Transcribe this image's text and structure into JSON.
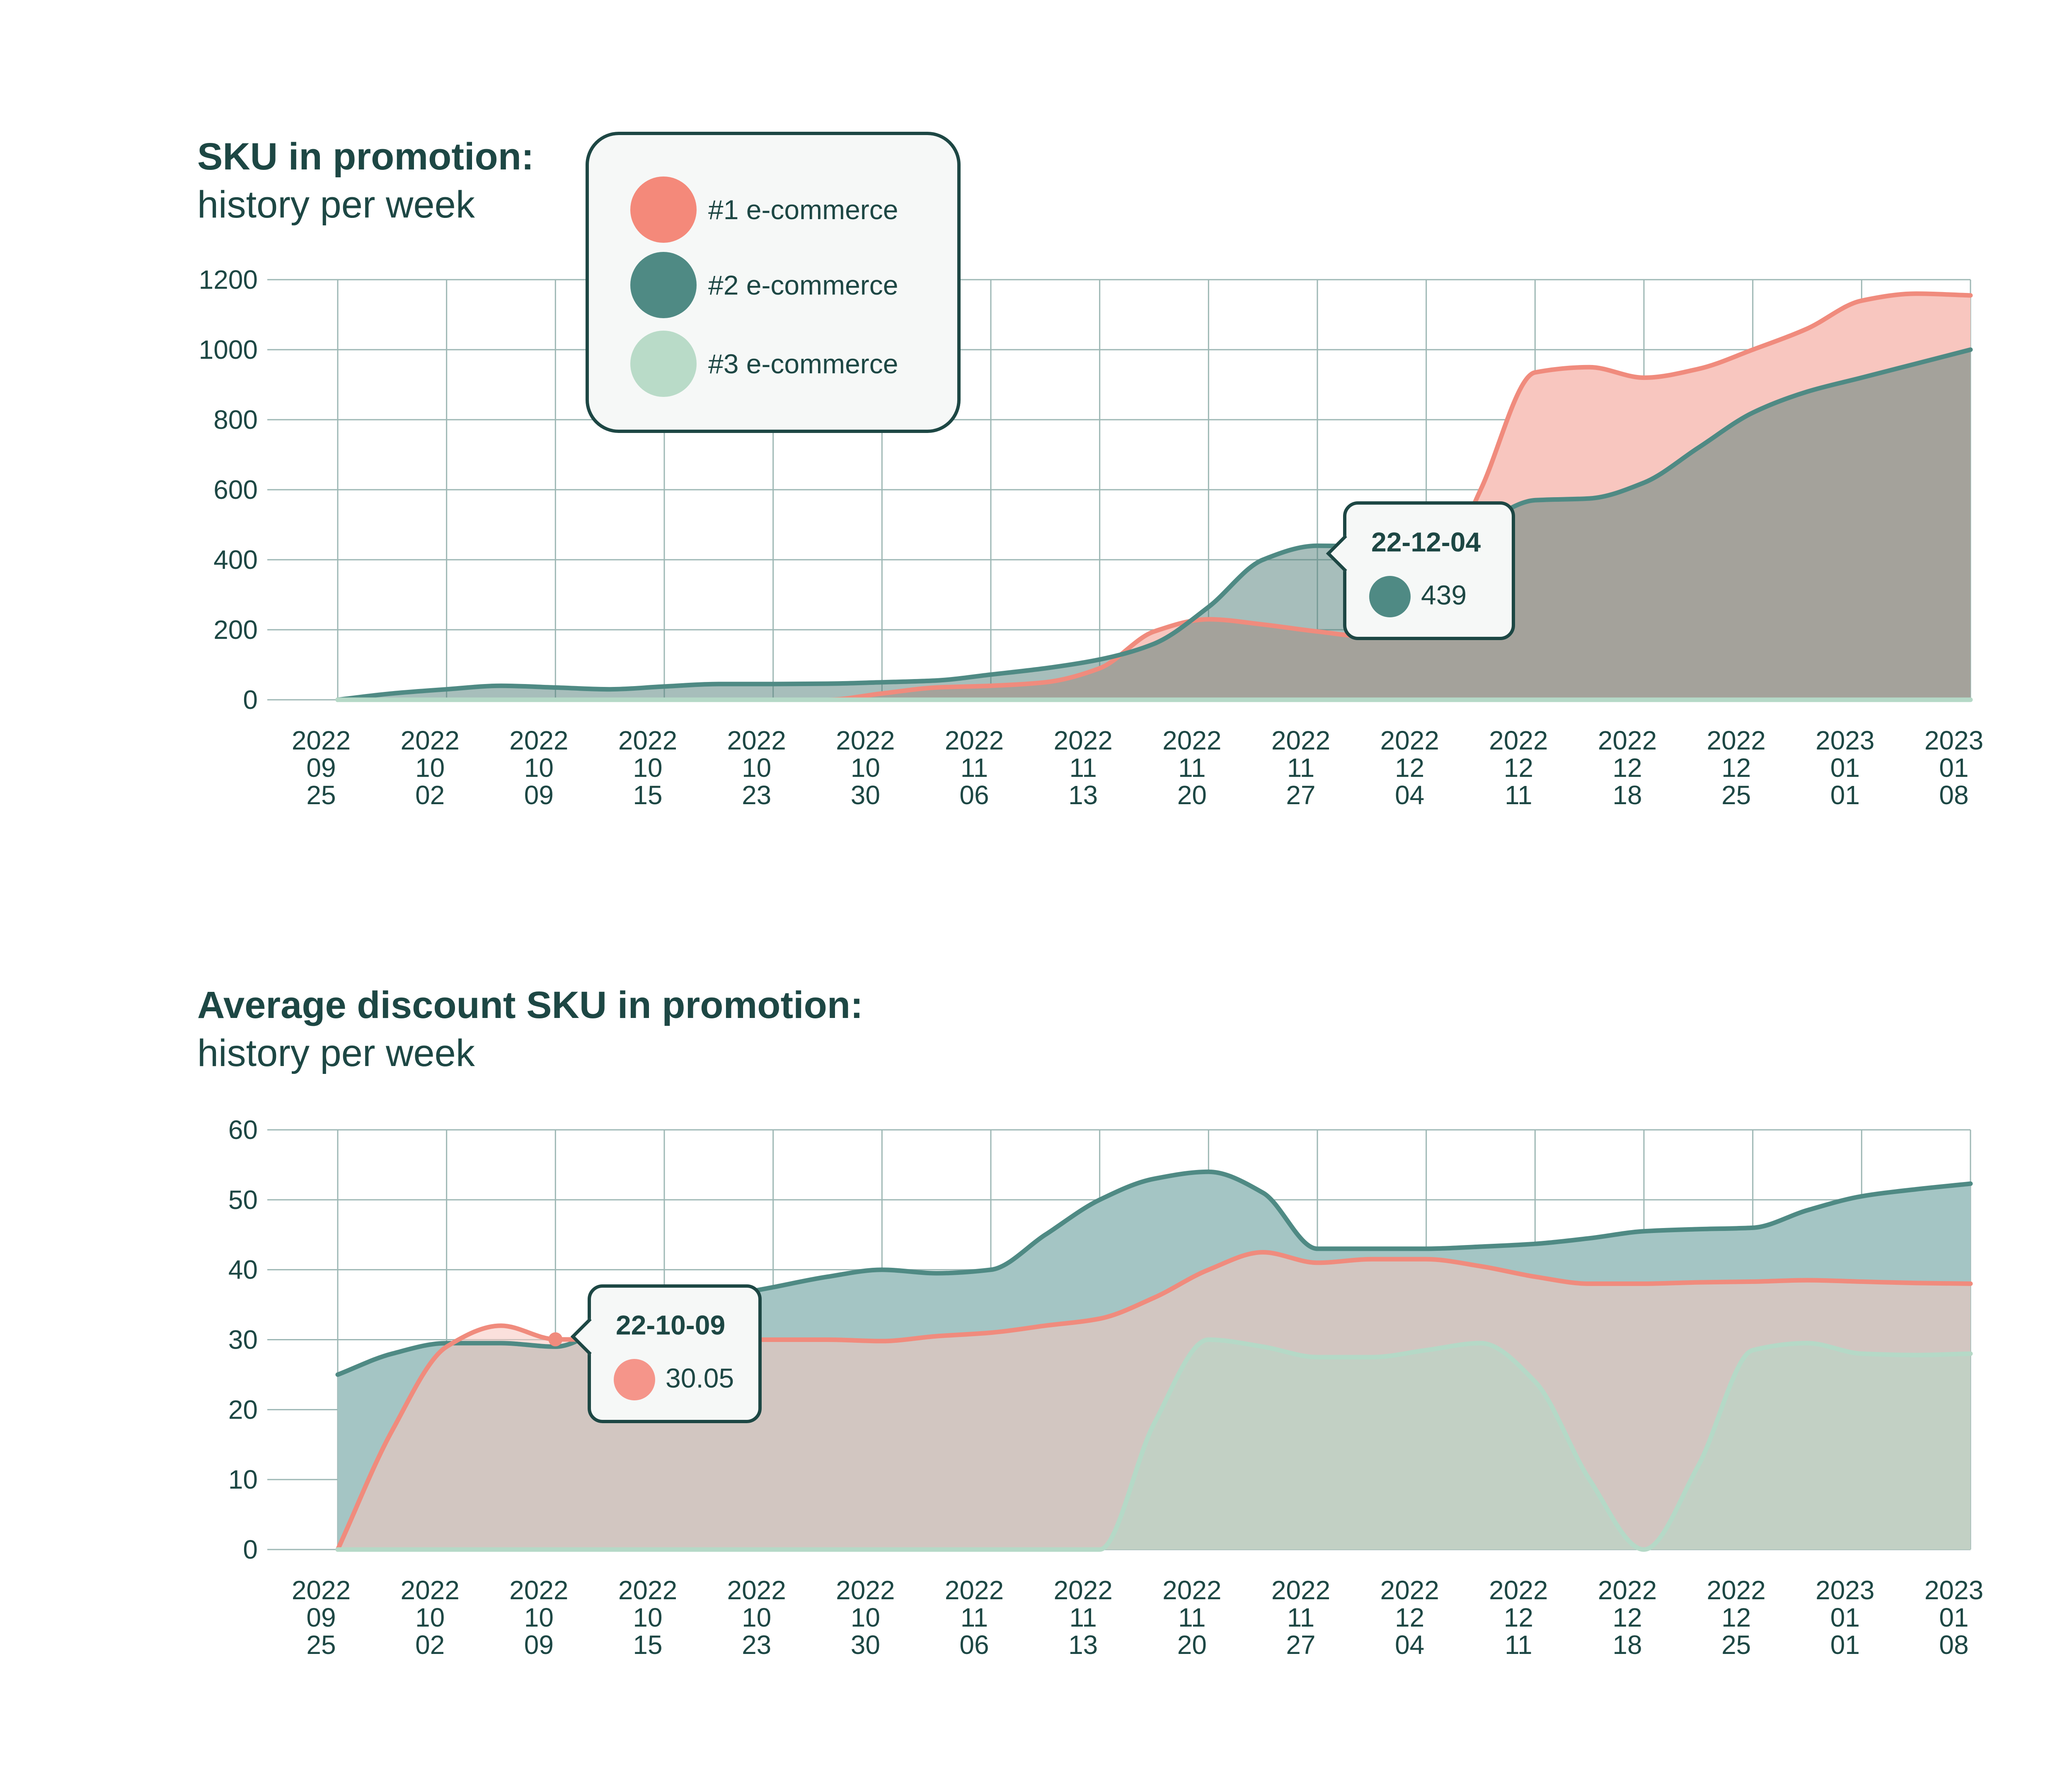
{
  "colors": {
    "series1": "#f08b7d",
    "series1_fill": "#f8c6bf",
    "series2": "#4f8a84",
    "series2_fill": "#a4c5c4",
    "series3": "#b5d9c7",
    "overlap_fill": "#a2a49f",
    "grid": "#9db7b4",
    "text": "#1d4744"
  },
  "legend": {
    "items": [
      {
        "label": "#1 e-commerce",
        "color": "#f4897a"
      },
      {
        "label": "#2 e-commerce",
        "color": "#4f8a84"
      },
      {
        "label": "#3 e-commerce",
        "color": "#b9dbc8"
      }
    ]
  },
  "x_ticks": [
    {
      "year": "2022",
      "month": "09",
      "day": "25"
    },
    {
      "year": "2022",
      "month": "10",
      "day": "02"
    },
    {
      "year": "2022",
      "month": "10",
      "day": "09"
    },
    {
      "year": "2022",
      "month": "10",
      "day": "15"
    },
    {
      "year": "2022",
      "month": "10",
      "day": "23"
    },
    {
      "year": "2022",
      "month": "10",
      "day": "30"
    },
    {
      "year": "2022",
      "month": "11",
      "day": "06"
    },
    {
      "year": "2022",
      "month": "11",
      "day": "13"
    },
    {
      "year": "2022",
      "month": "11",
      "day": "20"
    },
    {
      "year": "2022",
      "month": "11",
      "day": "27"
    },
    {
      "year": "2022",
      "month": "12",
      "day": "04"
    },
    {
      "year": "2022",
      "month": "12",
      "day": "11"
    },
    {
      "year": "2022",
      "month": "12",
      "day": "18"
    },
    {
      "year": "2022",
      "month": "12",
      "day": "25"
    },
    {
      "year": "2023",
      "month": "01",
      "day": "01"
    },
    {
      "year": "2023",
      "month": "01",
      "day": "08"
    }
  ],
  "chart1": {
    "title": "SKU in promotion:",
    "subtitle": "history per week",
    "tooltip": {
      "date": "22-12-04",
      "value": "439"
    }
  },
  "chart2": {
    "title": "Average discount SKU in promotion:",
    "subtitle": "history per week",
    "tooltip": {
      "date": "22-10-09",
      "value": "30.05"
    }
  },
  "chart_data": [
    {
      "type": "area",
      "title": "SKU in promotion: history per week",
      "xlabel": "",
      "ylabel": "",
      "ylim": [
        0,
        1200
      ],
      "yticks": [
        0,
        200,
        400,
        600,
        800,
        1000,
        1200
      ],
      "categories": [
        "2022-09-25",
        "2022-10-02",
        "2022-10-09",
        "2022-10-15",
        "2022-10-23",
        "2022-10-30",
        "2022-11-06",
        "2022-11-13",
        "2022-11-20",
        "2022-11-27",
        "2022-12-04",
        "2022-12-11",
        "2022-12-18",
        "2022-12-25",
        "2023-01-01",
        "2023-01-08"
      ],
      "legend": "top-left",
      "series": [
        {
          "name": "#1 e-commerce",
          "x": [
            0,
            1,
            2,
            3,
            4,
            4.5,
            5,
            5.5,
            6,
            6.5,
            7,
            7.5,
            8,
            8.5,
            9,
            9.5,
            10,
            10.5,
            11,
            11.5,
            12,
            12.5,
            13,
            13.5,
            14,
            14.5,
            15
          ],
          "values": [
            0,
            0,
            0,
            0,
            0,
            0,
            18,
            35,
            40,
            50,
            90,
            195,
            230,
            215,
            195,
            180,
            280,
            600,
            935,
            950,
            920,
            945,
            1000,
            1060,
            1140,
            1160,
            1155
          ]
        },
        {
          "name": "#2 e-commerce",
          "x": [
            0,
            0.5,
            1,
            1.5,
            2,
            2.5,
            3,
            3.5,
            4,
            4.5,
            5,
            5.5,
            6,
            6.5,
            7,
            7.5,
            8,
            8.5,
            9,
            9.25,
            9.5,
            10,
            10.5,
            11,
            11.5,
            12,
            12.5,
            13,
            13.5,
            14,
            14.5,
            15
          ],
          "values": [
            0,
            18,
            30,
            40,
            35,
            30,
            38,
            45,
            45,
            46,
            50,
            55,
            72,
            90,
            115,
            160,
            265,
            400,
            440,
            439,
            420,
            420,
            500,
            570,
            575,
            620,
            720,
            820,
            880,
            920,
            960,
            1000
          ]
        },
        {
          "name": "#3 e-commerce",
          "x": [
            0,
            15
          ],
          "values": [
            0,
            0
          ]
        }
      ],
      "tooltip": {
        "x": 9.25,
        "date": "22-12-04",
        "series": "#2 e-commerce",
        "value": 439
      }
    },
    {
      "type": "area",
      "title": "Average discount SKU in promotion: history per week",
      "xlabel": "",
      "ylabel": "",
      "ylim": [
        0,
        60
      ],
      "yticks": [
        0,
        10,
        20,
        30,
        40,
        50,
        60
      ],
      "categories": [
        "2022-09-25",
        "2022-10-02",
        "2022-10-09",
        "2022-10-15",
        "2022-10-23",
        "2022-10-30",
        "2022-11-06",
        "2022-11-13",
        "2022-11-20",
        "2022-11-27",
        "2022-12-04",
        "2022-12-11",
        "2022-12-18",
        "2022-12-25",
        "2023-01-01",
        "2023-01-08"
      ],
      "legend": "none",
      "series": [
        {
          "name": "#1 e-commerce",
          "x": [
            0,
            0.5,
            1,
            1.5,
            2,
            2.5,
            3,
            3.5,
            4,
            4.5,
            5,
            5.5,
            6,
            6.5,
            7,
            7.5,
            8,
            8.5,
            9,
            9.5,
            10,
            10.5,
            11,
            11.5,
            12,
            12.5,
            13,
            13.5,
            14,
            14.5,
            15
          ],
          "values": [
            0,
            17,
            29,
            32,
            30.05,
            30,
            30,
            30,
            30,
            30,
            29.8,
            30.5,
            31,
            32,
            33,
            36,
            40,
            42.5,
            41,
            41.5,
            41.5,
            40.5,
            39,
            38,
            38,
            38.2,
            38.3,
            38.5,
            38.3,
            38.1,
            38
          ]
        },
        {
          "name": "#2 e-commerce",
          "x": [
            0,
            0.5,
            1,
            1.5,
            2,
            2.5,
            3,
            3.5,
            4,
            4.5,
            5,
            5.5,
            6,
            6.5,
            7,
            7.5,
            8,
            8.5,
            9,
            9.5,
            10,
            10.5,
            11,
            11.5,
            12,
            12.5,
            13,
            13.5,
            14,
            14.5,
            15
          ],
          "values": [
            25,
            28,
            29.5,
            29.5,
            29,
            32,
            34,
            36,
            37.5,
            39,
            40,
            39.5,
            40,
            45,
            50,
            53,
            54,
            51,
            43,
            43,
            43,
            43.3,
            43.7,
            44.5,
            45.5,
            45.8,
            46,
            48.5,
            50.5,
            51.5,
            52.3
          ]
        },
        {
          "name": "#3 e-commerce",
          "x": [
            0,
            0.5,
            1,
            1.5,
            2,
            2.5,
            3,
            3.5,
            4,
            4.5,
            5,
            5.5,
            6,
            6.5,
            7,
            7.5,
            8,
            8.5,
            9,
            9.5,
            10,
            10.5,
            11,
            11.5,
            12,
            12.5,
            13,
            13.5,
            14,
            14.5,
            15
          ],
          "values": [
            0,
            0,
            0,
            0,
            0,
            0,
            0,
            0,
            0,
            0,
            0,
            0,
            0,
            0,
            0,
            18,
            30,
            29,
            27.5,
            27.5,
            28.5,
            29.5,
            24,
            10,
            0,
            12,
            28.5,
            29.5,
            28,
            27.8,
            28
          ]
        }
      ],
      "tooltip": {
        "x": 2,
        "date": "22-10-09",
        "series": "#1 e-commerce",
        "value": 30.05
      }
    }
  ]
}
